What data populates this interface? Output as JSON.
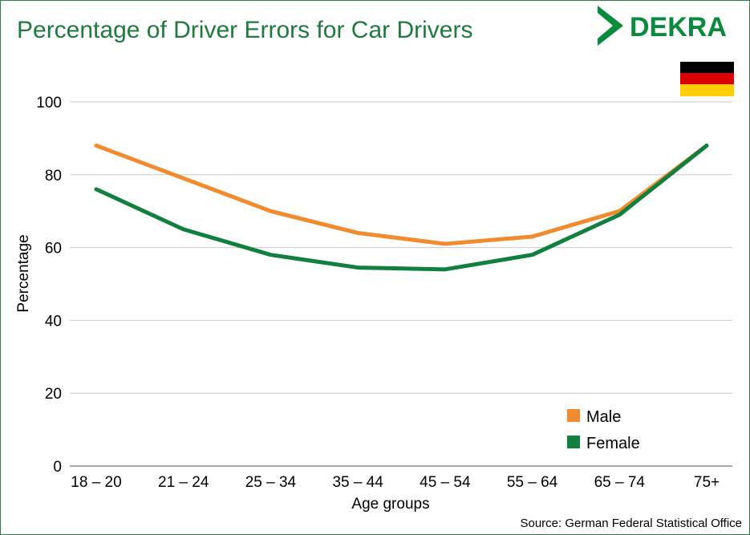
{
  "brand": {
    "logo_text": "DEKRA"
  },
  "chart_data": {
    "type": "line",
    "title": "Percentage of Driver Errors for Car Drivers",
    "xlabel": "Age groups",
    "ylabel": "Percentage",
    "categories": [
      "18 – 20",
      "21 – 24",
      "25 – 34",
      "35 – 44",
      "45 – 54",
      "55 – 64",
      "65 – 74",
      "75+"
    ],
    "ylim": [
      0,
      100
    ],
    "yticks": [
      0,
      20,
      40,
      60,
      80,
      100
    ],
    "grid": true,
    "legend_position": "bottom-right",
    "series": [
      {
        "name": "Male",
        "color": "#f28a2e",
        "values": [
          88,
          79,
          70,
          64,
          61,
          63,
          70,
          88
        ]
      },
      {
        "name": "Female",
        "color": "#11803f",
        "values": [
          76,
          65,
          58,
          54.5,
          54,
          58,
          69,
          88
        ]
      }
    ],
    "source": "Source: German Federal Statistical Office"
  }
}
